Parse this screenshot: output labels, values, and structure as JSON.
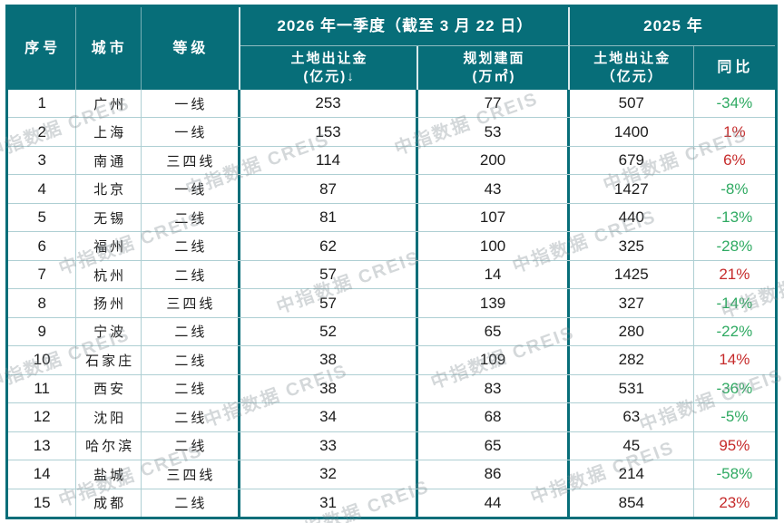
{
  "header": {
    "index": "序号",
    "city": "城市",
    "tier": "等级",
    "group_2026": "2026 年一季度（截至 3 月 22 日）",
    "premium_2026_l1": "土地出让金",
    "premium_2026_l2": "(亿元)↓",
    "area_l1": "规划建面",
    "area_l2": "(万㎡)",
    "group_2025": "2025 年",
    "premium_2025_l1": "土地出让金",
    "premium_2025_l2": "（亿元）",
    "yoy": "同比"
  },
  "chart_data": {
    "type": "table",
    "columns": [
      "序号",
      "城市",
      "等级",
      "2026年一季度(截至3月22日) 土地出让金(亿元)",
      "2026年一季度(截至3月22日) 规划建面(万㎡)",
      "2025年 土地出让金(亿元)",
      "2025年 同比"
    ],
    "rows": [
      {
        "index": "1",
        "city": "广州",
        "tier": "一线",
        "premium_2026": "253",
        "area_2026": "77",
        "premium_2025": "507",
        "yoy": "-34%"
      },
      {
        "index": "2",
        "city": "上海",
        "tier": "一线",
        "premium_2026": "153",
        "area_2026": "53",
        "premium_2025": "1400",
        "yoy": "1%"
      },
      {
        "index": "3",
        "city": "南通",
        "tier": "三四线",
        "premium_2026": "114",
        "area_2026": "200",
        "premium_2025": "679",
        "yoy": "6%"
      },
      {
        "index": "4",
        "city": "北京",
        "tier": "一线",
        "premium_2026": "87",
        "area_2026": "43",
        "premium_2025": "1427",
        "yoy": "-8%"
      },
      {
        "index": "5",
        "city": "无锡",
        "tier": "二线",
        "premium_2026": "81",
        "area_2026": "107",
        "premium_2025": "440",
        "yoy": "-13%"
      },
      {
        "index": "6",
        "city": "福州",
        "tier": "二线",
        "premium_2026": "62",
        "area_2026": "100",
        "premium_2025": "325",
        "yoy": "-28%"
      },
      {
        "index": "7",
        "city": "杭州",
        "tier": "二线",
        "premium_2026": "57",
        "area_2026": "14",
        "premium_2025": "1425",
        "yoy": "21%"
      },
      {
        "index": "8",
        "city": "扬州",
        "tier": "三四线",
        "premium_2026": "57",
        "area_2026": "139",
        "premium_2025": "327",
        "yoy": "-14%"
      },
      {
        "index": "9",
        "city": "宁波",
        "tier": "二线",
        "premium_2026": "52",
        "area_2026": "65",
        "premium_2025": "280",
        "yoy": "-22%"
      },
      {
        "index": "10",
        "city": "石家庄",
        "tier": "二线",
        "premium_2026": "38",
        "area_2026": "109",
        "premium_2025": "282",
        "yoy": "14%"
      },
      {
        "index": "11",
        "city": "西安",
        "tier": "二线",
        "premium_2026": "38",
        "area_2026": "83",
        "premium_2025": "531",
        "yoy": "-36%"
      },
      {
        "index": "12",
        "city": "沈阳",
        "tier": "二线",
        "premium_2026": "34",
        "area_2026": "68",
        "premium_2025": "63",
        "yoy": "-5%"
      },
      {
        "index": "13",
        "city": "哈尔滨",
        "tier": "二线",
        "premium_2026": "33",
        "area_2026": "65",
        "premium_2025": "45",
        "yoy": "95%"
      },
      {
        "index": "14",
        "city": "盐城",
        "tier": "三四线",
        "premium_2026": "32",
        "area_2026": "86",
        "premium_2025": "214",
        "yoy": "-58%"
      },
      {
        "index": "15",
        "city": "成都",
        "tier": "二线",
        "premium_2026": "31",
        "area_2026": "44",
        "premium_2025": "854",
        "yoy": "23%"
      }
    ]
  },
  "watermark": {
    "text": "中指数据 CREIS"
  },
  "colors": {
    "header_teal": "#076e79",
    "grid_line": "#aecfd3",
    "yoy_up_red": "#c62b2b",
    "yoy_down_green": "#2faa62"
  }
}
